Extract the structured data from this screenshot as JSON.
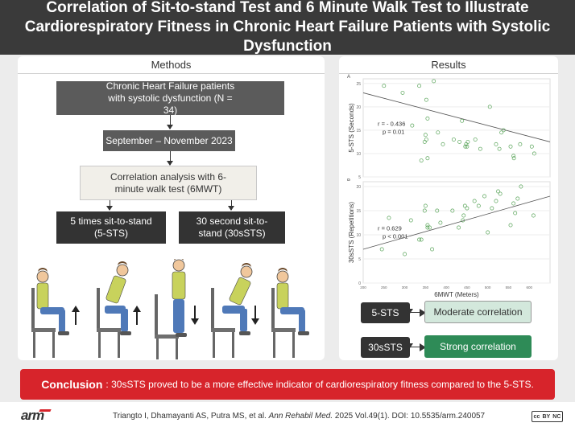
{
  "title": "Correlation of Sit-to-stand Test and 6 Minute Walk Test to Illustrate Cardiorespiratory Fitness in Chronic Heart Failure Patients with Systolic Dysfunction",
  "methods": {
    "header": "Methods",
    "box1": "Chronic Heart Failure patients with systolic dysfunction (N = 34)",
    "box2": "September – November 2023",
    "box3": "Correlation analysis with 6-minute walk test (6MWT)",
    "box4": "5 times sit-to-stand (5-STS)",
    "box5": "30 second sit-to-stand (30sSTS)"
  },
  "results": {
    "header": "Results",
    "item1_label": "5-STS",
    "item1_result": "Moderate correlation",
    "item2_label": "30sSTS",
    "item2_result": "Strong correlation"
  },
  "colors": {
    "accent_red": "#d7242b",
    "moderate_fill": "#d3e8dc",
    "strong_fill": "#2e8b57",
    "point_green": "#5aa55a"
  },
  "chart_data": [
    {
      "type": "scatter",
      "panel_label": "A",
      "ylabel": "5-STS (Seconds)",
      "xlabel": "",
      "annotation_r": "r = - 0.436",
      "annotation_p": "p = 0.01",
      "xlim": [
        200,
        650
      ],
      "ylim": [
        5,
        26
      ],
      "yticks": [
        "5",
        "10",
        "15",
        "20",
        "25"
      ],
      "trend": [
        [
          200,
          23.0
        ],
        [
          650,
          12.5
        ]
      ],
      "points": [
        [
          250,
          24.5
        ],
        [
          295,
          23.0
        ],
        [
          335,
          24.5
        ],
        [
          352,
          21.5
        ],
        [
          370,
          25.5
        ],
        [
          318,
          16.0
        ],
        [
          350,
          14.0
        ],
        [
          352,
          13.0
        ],
        [
          355,
          17.5
        ],
        [
          348,
          12.5
        ],
        [
          340,
          8.5
        ],
        [
          355,
          9.0
        ],
        [
          380,
          14.5
        ],
        [
          392,
          12.0
        ],
        [
          418,
          13.0
        ],
        [
          432,
          12.5
        ],
        [
          438,
          17.0
        ],
        [
          446,
          11.5
        ],
        [
          450,
          11.5
        ],
        [
          452,
          12.5
        ],
        [
          470,
          13.0
        ],
        [
          482,
          11.0
        ],
        [
          505,
          20.0
        ],
        [
          520,
          12.0
        ],
        [
          528,
          11.0
        ],
        [
          533,
          14.5
        ],
        [
          538,
          15.0
        ],
        [
          555,
          11.5
        ],
        [
          562,
          9.5
        ],
        [
          563,
          9.0
        ],
        [
          578,
          12.0
        ],
        [
          606,
          11.5
        ],
        [
          612,
          10.0
        ],
        [
          448,
          12.0
        ]
      ]
    },
    {
      "type": "scatter",
      "panel_label": "B",
      "ylabel": "30sSTS (Repetitions)",
      "xlabel": "6MWT (Meters)",
      "annotation_r": "r = 0.629",
      "annotation_p": "p < 0.001",
      "xlim": [
        200,
        650
      ],
      "ylim": [
        0,
        21
      ],
      "yticks": [
        "0",
        "5",
        "10",
        "15",
        "20"
      ],
      "xticks": [
        "200",
        "250",
        "300",
        "350",
        "400",
        "450",
        "500",
        "550",
        "600"
      ],
      "trend": [
        [
          200,
          7.0
        ],
        [
          650,
          18.0
        ]
      ],
      "points": [
        [
          245,
          7.0
        ],
        [
          262,
          13.5
        ],
        [
          300,
          6.0
        ],
        [
          315,
          13.0
        ],
        [
          335,
          9.0
        ],
        [
          340,
          9.0
        ],
        [
          348,
          15.0
        ],
        [
          350,
          16.0
        ],
        [
          355,
          11.5
        ],
        [
          355,
          12.0
        ],
        [
          360,
          11.5
        ],
        [
          366,
          7.0
        ],
        [
          378,
          15.0
        ],
        [
          386,
          12.5
        ],
        [
          415,
          15.0
        ],
        [
          430,
          11.5
        ],
        [
          440,
          13.0
        ],
        [
          442,
          14.0
        ],
        [
          445,
          16.0
        ],
        [
          450,
          15.5
        ],
        [
          468,
          17.0
        ],
        [
          478,
          16.0
        ],
        [
          492,
          18.0
        ],
        [
          500,
          10.5
        ],
        [
          510,
          15.5
        ],
        [
          520,
          17.0
        ],
        [
          525,
          19.0
        ],
        [
          530,
          18.5
        ],
        [
          555,
          12.0
        ],
        [
          562,
          16.5
        ],
        [
          566,
          14.5
        ],
        [
          572,
          17.5
        ],
        [
          580,
          20.0
        ],
        [
          610,
          14.0
        ]
      ]
    }
  ]
}
